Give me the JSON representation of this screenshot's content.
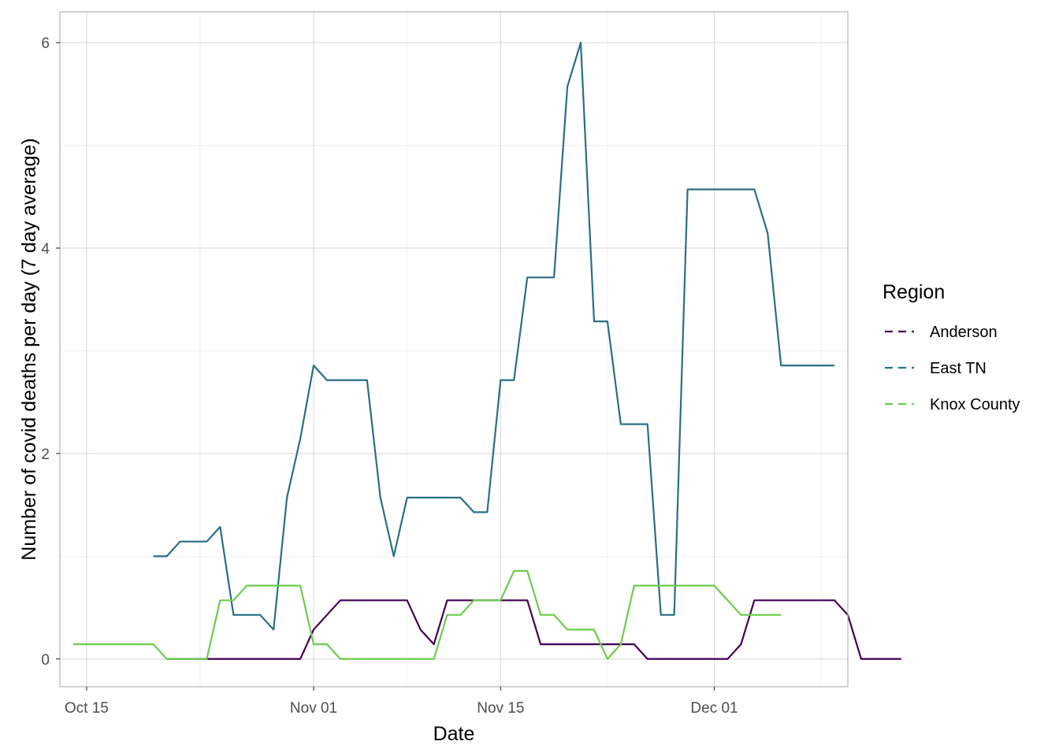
{
  "chart_data": {
    "type": "line",
    "xlabel": "Date",
    "ylabel": "Number of covid deaths per day (7 day average)",
    "x_ticks": [
      {
        "date": "2020-10-15",
        "label": "Oct 15"
      },
      {
        "date": "2020-11-01",
        "label": "Nov 01"
      },
      {
        "date": "2020-11-15",
        "label": "Nov 15"
      },
      {
        "date": "2020-12-01",
        "label": "Dec 01"
      }
    ],
    "y_ticks": [
      0,
      2,
      4,
      6
    ],
    "xlim": [
      "2020-10-13",
      "2020-12-11"
    ],
    "ylim": [
      -0.27,
      6.3
    ],
    "grid": true,
    "legend": {
      "title": "Region",
      "placement": "right"
    },
    "series": [
      {
        "name": "Anderson",
        "color": "#440154",
        "start": "2020-10-21",
        "values": [
          0,
          0,
          0,
          0,
          0,
          0,
          0,
          0,
          0,
          0,
          0,
          0.286,
          0.429,
          0.571,
          0.571,
          0.571,
          0.571,
          0.571,
          0.571,
          0.286,
          0.143,
          0.571,
          0.571,
          0.571,
          0.571,
          0.571,
          0.571,
          0.571,
          0.143,
          0.143,
          0.143,
          0.143,
          0.143,
          0.143,
          0.143,
          0.143,
          0,
          0,
          0,
          0,
          0,
          0,
          0,
          0.143,
          0.571,
          0.571,
          0.571,
          0.571,
          0.571,
          0.571,
          0.571,
          0.429,
          0,
          0,
          0,
          0
        ]
      },
      {
        "name": "East TN",
        "color": "#2a6f84",
        "start": "2020-10-20",
        "values": [
          1.0,
          1.0,
          1.143,
          1.143,
          1.143,
          1.286,
          0.429,
          0.429,
          0.429,
          0.286,
          1.571,
          2.143,
          2.857,
          2.714,
          2.714,
          2.714,
          2.714,
          1.571,
          1.0,
          1.571,
          1.571,
          1.571,
          1.571,
          1.571,
          1.429,
          1.429,
          2.714,
          2.714,
          3.714,
          3.714,
          3.714,
          5.571,
          6.0,
          3.286,
          3.286,
          2.286,
          2.286,
          2.286,
          0.429,
          0.429,
          4.571,
          4.571,
          4.571,
          4.571,
          4.571,
          4.571,
          4.143,
          2.857,
          2.857,
          2.857,
          2.857,
          2.857
        ]
      },
      {
        "name": "Knox County",
        "color": "#6ccd4c",
        "start": "2020-10-14",
        "values": [
          0.143,
          0.143,
          0.143,
          0.143,
          0.143,
          0.143,
          0.143,
          0,
          0,
          0,
          0,
          0.571,
          0.571,
          0.714,
          0.714,
          0.714,
          0.714,
          0.714,
          0.143,
          0.143,
          0,
          0,
          0,
          0,
          0,
          0,
          0,
          0,
          0.429,
          0.429,
          0.571,
          0.571,
          0.571,
          0.857,
          0.857,
          0.429,
          0.429,
          0.286,
          0.286,
          0.286,
          0,
          0.143,
          0.714,
          0.714,
          0.714,
          0.714,
          0.714,
          0.714,
          0.714,
          0.571,
          0.429,
          0.429,
          0.429,
          0.429
        ]
      }
    ]
  }
}
